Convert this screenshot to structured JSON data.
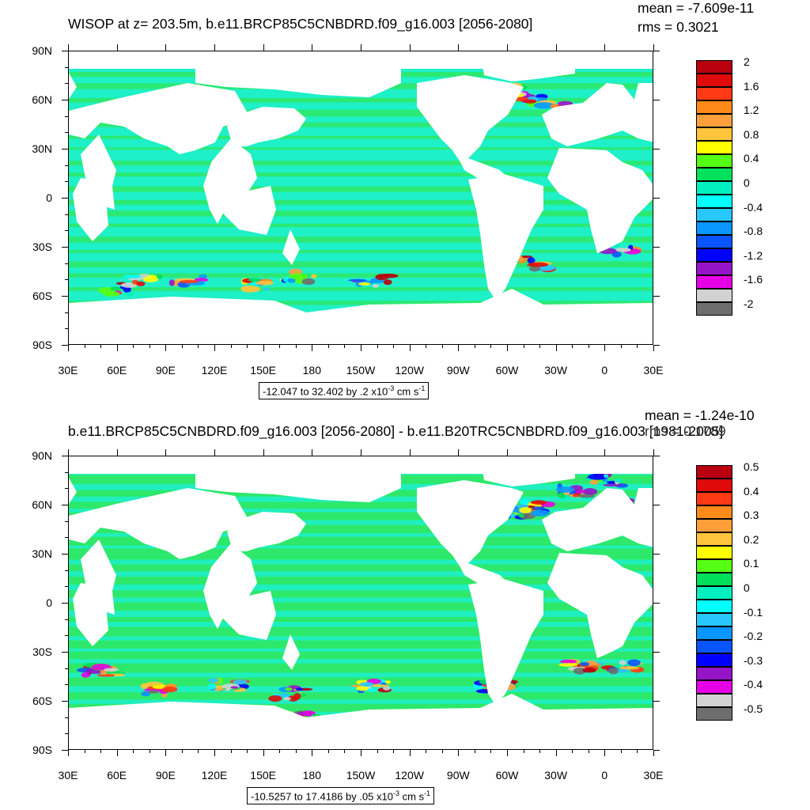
{
  "panels": [
    {
      "title": "WISOP at z= 203.5m, b.e11.BRCP85C5CNBDRD.f09_g16.003 [2056-2080]",
      "mean": "mean = -7.609e-11",
      "rms": "rms = 0.3021",
      "info_prefix": "-12.047 to 32.402 by .2 x10",
      "info_exp": "-3",
      "info_unit": " cm s",
      "info_unit_exp": "-1",
      "colorbar_labels": [
        "2",
        "1.6",
        "1.2",
        "0.8",
        "0.4",
        "0",
        "-0.4",
        "-0.8",
        "-1.2",
        "-1.6",
        "-2"
      ]
    },
    {
      "title": "b.e11.BRCP85C5CNBDRD.f09_g16.003 [2056-2080] - b.e11.B20TRC5CNBDRD.f09_g16.003 [1981-2005]",
      "mean": "mean = -1.24e-10",
      "rms": "rms = 0.1789",
      "info_prefix": "-10.5257 to 17.4186 by .05 x10",
      "info_exp": "-3",
      "info_unit": " cm s",
      "info_unit_exp": "-1",
      "colorbar_labels": [
        "0.5",
        "0.4",
        "0.3",
        "0.2",
        "0.1",
        "0",
        "-0.1",
        "-0.2",
        "-0.3",
        "-0.4",
        "-0.5"
      ]
    }
  ],
  "y_axis_labels": [
    "90N",
    "60N",
    "30N",
    "0",
    "30S",
    "60S",
    "90S"
  ],
  "x_axis_labels": [
    "30E",
    "60E",
    "90E",
    "120E",
    "150E",
    "180",
    "150W",
    "120W",
    "90W",
    "60W",
    "30W",
    "0",
    "30E"
  ],
  "colorbar_colors": [
    "#b8000f",
    "#e00a0a",
    "#ff3a14",
    "#ff8a1a",
    "#ff9f3c",
    "#ffc43c",
    "#ffff00",
    "#55ff14",
    "#00e05a",
    "#00f0c0",
    "#00ffff",
    "#28c8ff",
    "#0a96ff",
    "#0a55ff",
    "#0000ff",
    "#9614c8",
    "#e600e6",
    "#d2d2d2",
    "#6e6e6e"
  ],
  "ocean_colors": {
    "green": "#2ee86a",
    "cyan": "#1ef0c8",
    "land": "#ffffff"
  }
}
